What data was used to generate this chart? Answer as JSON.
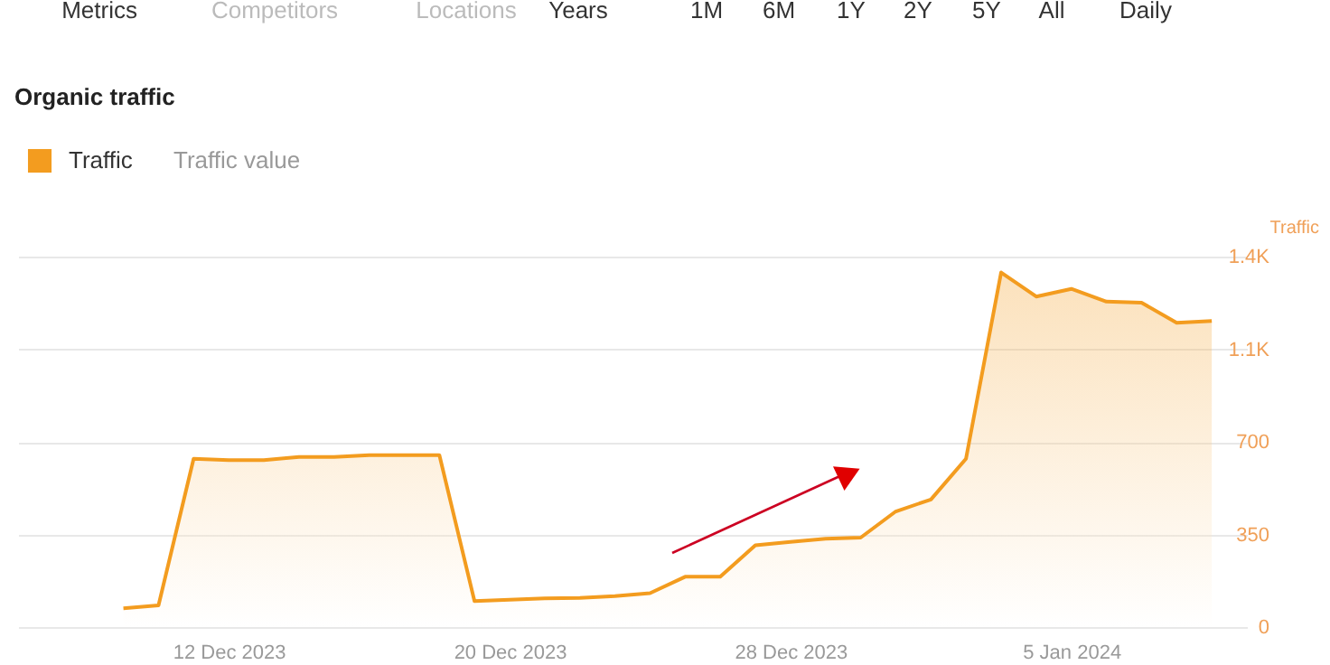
{
  "chart_data": {
    "type": "area",
    "title": "Organic traffic",
    "annotations": [
      "Metrics",
      "Competitors",
      "Locations",
      "Years",
      "1M",
      "6M",
      "1Y",
      "2Y",
      "5Y",
      "All",
      "Daily",
      "Traffic value"
    ],
    "x": [
      "2023-12-09",
      "2023-12-10",
      "2023-12-11",
      "2023-12-12",
      "2023-12-13",
      "2023-12-14",
      "2023-12-15",
      "2023-12-16",
      "2023-12-17",
      "2023-12-18",
      "2023-12-19",
      "2023-12-20",
      "2023-12-21",
      "2023-12-22",
      "2023-12-23",
      "2023-12-24",
      "2023-12-25",
      "2023-12-26",
      "2023-12-27",
      "2023-12-28",
      "2023-12-29",
      "2023-12-30",
      "2023-12-31",
      "2024-01-01",
      "2024-01-02",
      "2024-01-03",
      "2024-01-04",
      "2024-01-05",
      "2024-01-06",
      "2024-01-07",
      "2024-01-08",
      "2024-01-09"
    ],
    "series": [
      {
        "name": "Traffic",
        "color": "#f39c1f",
        "values": [
          71,
          82,
          636,
          631,
          631,
          643,
          643,
          650,
          650,
          650,
          98,
          103,
          108,
          110,
          117,
          128,
          190,
          190,
          309,
          322,
          334,
          338,
          437,
          482,
          636,
          1340,
          1249,
          1278,
          1230,
          1226,
          1150,
          1157
        ]
      }
    ],
    "ylabel": "Traffic",
    "xlim": [
      "2023-12-06",
      "2024-01-10"
    ],
    "xticks": [
      {
        "value": "2023-12-12",
        "label": "12 Dec 2023"
      },
      {
        "value": "2023-12-20",
        "label": "20 Dec 2023"
      },
      {
        "value": "2023-12-28",
        "label": "28 Dec 2023"
      },
      {
        "value": "2024-01-05",
        "label": "5 Jan 2024"
      }
    ],
    "ylim": [
      0,
      1400
    ],
    "yticks": [
      0,
      350,
      700,
      {
        "value": 1050,
        "label": "1.1K"
      },
      {
        "value": 1400,
        "label": "1.4K"
      }
    ],
    "grid": "y",
    "legend": "top left"
  }
}
